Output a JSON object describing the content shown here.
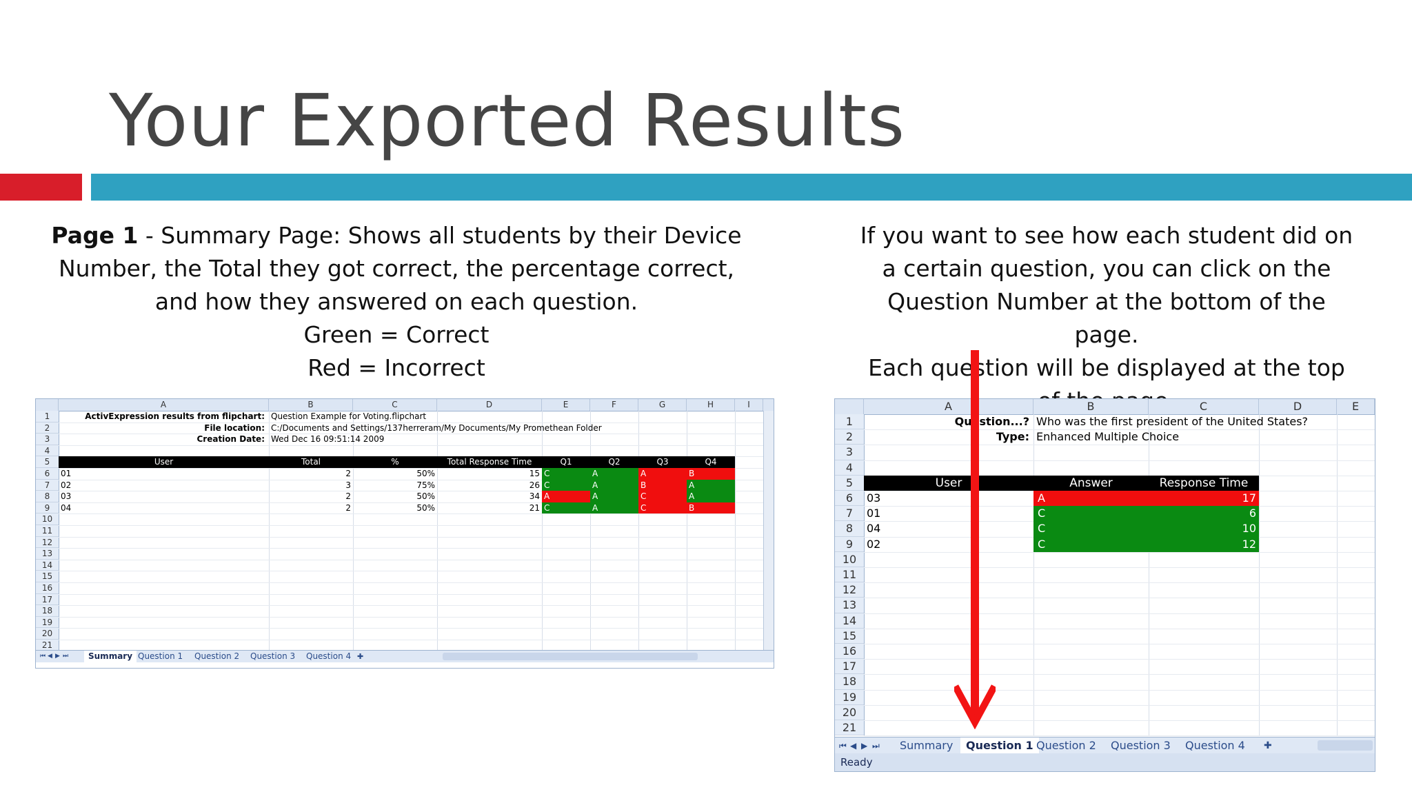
{
  "slide": {
    "title": "Your Exported Results",
    "left_text": {
      "bold": "Page 1",
      "line1_rest": " - Summary Page: Shows all students by their Device",
      "line2": "Number, the Total they got correct, the percentage correct,",
      "line3": "and how they answered on each question.",
      "line4": "Green = Correct",
      "line5": "Red = Incorrect"
    },
    "right_text": {
      "line1": "If you want to see how each student did on",
      "line2": "a certain question, you can click on the",
      "line3": "Question Number at the bottom of the",
      "line4": "page.",
      "line5": "Each question will be displayed at the top",
      "line6": "of the page."
    },
    "colors": {
      "red_bar": "#d81e2a",
      "blue_bar": "#2fa1c1",
      "correct": "#0a8a12",
      "incorrect": "#f00e0e"
    }
  },
  "sheet1": {
    "columns": [
      "A",
      "B",
      "C",
      "D",
      "E",
      "F",
      "G",
      "H",
      "I"
    ],
    "rows": [
      "1",
      "2",
      "3",
      "4",
      "5",
      "6",
      "7",
      "8",
      "9",
      "10",
      "11",
      "12",
      "13",
      "14",
      "15",
      "16",
      "17",
      "18",
      "19",
      "20",
      "21"
    ],
    "meta": {
      "label1": "ActivExpression results from flipchart:",
      "value1": "Question Example for Voting.flipchart",
      "label2": "File location:",
      "value2": "C:/Documents and Settings/137herreram/My Documents/My Promethean Folder",
      "label3": "Creation Date:",
      "value3": "Wed Dec 16 09:51:14 2009"
    },
    "headers": [
      "User",
      "Total",
      "%",
      "Total Response Time",
      "Q1",
      "Q2",
      "Q3",
      "Q4"
    ],
    "data": [
      [
        "01",
        "2",
        "50%",
        "15",
        "C",
        "A",
        "A",
        "B"
      ],
      [
        "02",
        "3",
        "75%",
        "26",
        "C",
        "A",
        "B",
        "A"
      ],
      [
        "03",
        "2",
        "50%",
        "34",
        "A",
        "A",
        "C",
        "A"
      ],
      [
        "04",
        "2",
        "50%",
        "21",
        "C",
        "A",
        "C",
        "B"
      ]
    ],
    "tabs": [
      "Summary",
      "Question 1",
      "Question 2",
      "Question 3",
      "Question 4"
    ],
    "active_tab": "Summary"
  },
  "sheet2": {
    "columns": [
      "A",
      "B",
      "C",
      "D",
      "E"
    ],
    "rows": [
      "1",
      "2",
      "3",
      "4",
      "5",
      "6",
      "7",
      "8",
      "9",
      "10",
      "11",
      "12",
      "13",
      "14",
      "15",
      "16",
      "17",
      "18",
      "19",
      "20",
      "21"
    ],
    "meta": {
      "label1": "Question...?",
      "value1": "Who was the first president of the United States?",
      "label2": "Type:",
      "value2": "Enhanced Multiple Choice"
    },
    "headers": [
      "User",
      "Answer",
      "Response Time"
    ],
    "data": [
      [
        "03",
        "A",
        "17"
      ],
      [
        "01",
        "C",
        "6"
      ],
      [
        "04",
        "C",
        "10"
      ],
      [
        "02",
        "C",
        "12"
      ]
    ],
    "tabs": [
      "Summary",
      "Question 1",
      "Question 2",
      "Question 3",
      "Question 4"
    ],
    "active_tab": "Question 1",
    "status": "Ready"
  }
}
